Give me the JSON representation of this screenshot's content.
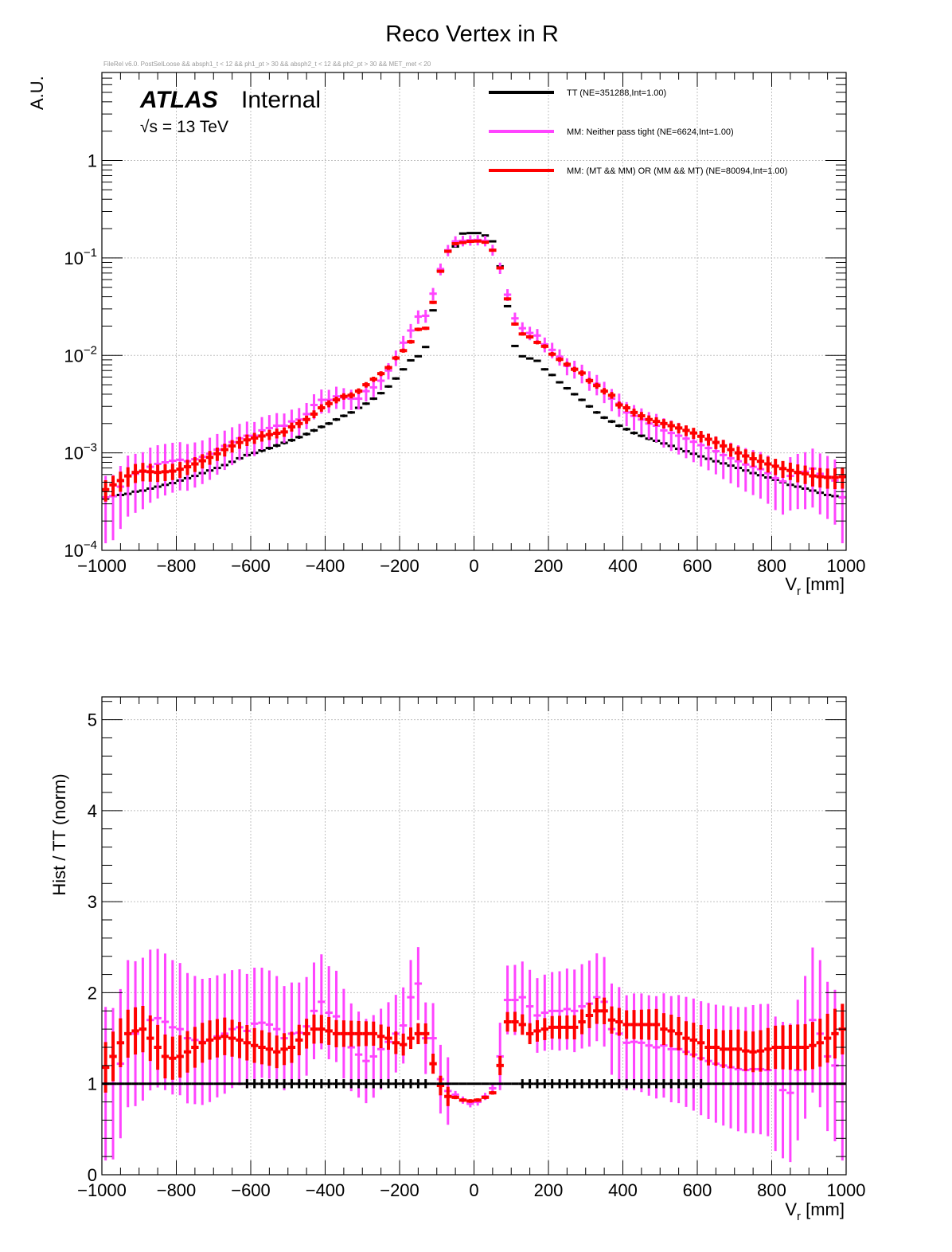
{
  "title": "Reco Vertex in R",
  "cut_string": "FileRel v6.0. PostSelLoose && absph1_t < 12 && ph1_pt > 30 && absph2_t < 12 && ph2_pt > 30 && MET_met < 20",
  "atlas_label": "ATLAS",
  "atlas_status": "Internal",
  "energy_label": "√s = 13 TeV",
  "colors": {
    "TT": "#000000",
    "MM_neither": "#ff44ff",
    "MM_mixed": "#ff0000",
    "grid": "#bbbbbb"
  },
  "chart_data": [
    {
      "type": "scatter",
      "panel": "top",
      "xlabel": "V",
      "xlabel_sub": "r",
      "xlabel_unit": " [mm]",
      "ylabel": "A.U.",
      "xlim": [
        -1000,
        1000
      ],
      "ylim": [
        0.0001,
        8
      ],
      "yscale": "log",
      "grid": true,
      "legend_position": "top-right",
      "x_ticks": [
        "−1000",
        "−800",
        "−600",
        "−400",
        "−200",
        "0",
        "200",
        "400",
        "600",
        "800",
        "1000"
      ],
      "y_ticks": [
        {
          "base": "10",
          "exp": "−4",
          "value": 0.0001
        },
        {
          "base": "10",
          "exp": "−3",
          "value": 0.001
        },
        {
          "base": "10",
          "exp": "−2",
          "value": 0.01
        },
        {
          "base": "10",
          "exp": "−1",
          "value": 0.1
        },
        {
          "base": "1",
          "exp": "",
          "value": 1
        }
      ],
      "x": [
        -990,
        -970,
        -950,
        -930,
        -910,
        -890,
        -870,
        -850,
        -830,
        -810,
        -790,
        -770,
        -750,
        -730,
        -710,
        -690,
        -670,
        -650,
        -630,
        -610,
        -590,
        -570,
        -550,
        -530,
        -510,
        -490,
        -470,
        -450,
        -430,
        -410,
        -390,
        -370,
        -350,
        -330,
        -310,
        -290,
        -270,
        -250,
        -230,
        -210,
        -190,
        -170,
        -150,
        -130,
        -110,
        -90,
        -70,
        -50,
        -30,
        -10,
        10,
        30,
        50,
        70,
        90,
        110,
        130,
        150,
        170,
        190,
        210,
        230,
        250,
        270,
        290,
        310,
        330,
        350,
        370,
        390,
        410,
        430,
        450,
        470,
        490,
        510,
        530,
        550,
        570,
        590,
        610,
        630,
        650,
        670,
        690,
        710,
        730,
        750,
        770,
        790,
        810,
        830,
        850,
        870,
        890,
        910,
        930,
        950,
        970,
        990
      ],
      "series": [
        {
          "name": "TT (NE=351288,Int=1.00)",
          "values": [
            0.00034,
            0.00036,
            0.00037,
            0.00038,
            0.0004,
            0.00041,
            0.00043,
            0.00045,
            0.00047,
            0.00049,
            0.00052,
            0.00055,
            0.00058,
            0.00062,
            0.00066,
            0.0007,
            0.00075,
            0.00081,
            0.00088,
            0.00095,
            0.001,
            0.00106,
            0.00112,
            0.00119,
            0.00127,
            0.00135,
            0.00145,
            0.00156,
            0.0017,
            0.00185,
            0.002,
            0.0022,
            0.0024,
            0.0026,
            0.0029,
            0.0032,
            0.0036,
            0.0041,
            0.0048,
            0.0058,
            0.0072,
            0.0089,
            0.0098,
            0.0122,
            0.029,
            0.074,
            0.119,
            0.131,
            0.178,
            0.18,
            0.18,
            0.17,
            0.148,
            0.082,
            0.032,
            0.0125,
            0.0098,
            0.0093,
            0.0088,
            0.0072,
            0.0063,
            0.0053,
            0.0046,
            0.004,
            0.0035,
            0.003,
            0.0026,
            0.0023,
            0.0021,
            0.0019,
            0.00175,
            0.0016,
            0.0015,
            0.0014,
            0.00133,
            0.00125,
            0.00118,
            0.0011,
            0.00104,
            0.00098,
            0.00092,
            0.00087,
            0.00082,
            0.00078,
            0.00074,
            0.0007,
            0.00066,
            0.00062,
            0.00059,
            0.00056,
            0.00053,
            0.0005,
            0.00047,
            0.00045,
            0.00043,
            0.00041,
            0.00039,
            0.00037,
            0.00036,
            0.00035
          ]
        },
        {
          "name": "MM: Neither pass tight (NE=6624,Int=1.00)",
          "values": [
            0.00035,
            0.00036,
            0.00045,
            0.00058,
            0.00061,
            0.00064,
            0.00072,
            0.00077,
            0.0008,
            0.00083,
            0.00085,
            0.00082,
            0.00086,
            0.00091,
            0.00098,
            0.00108,
            0.00118,
            0.00129,
            0.00141,
            0.0015,
            0.0015,
            0.0017,
            0.0018,
            0.0019,
            0.0019,
            0.0021,
            0.0022,
            0.0025,
            0.0031,
            0.0035,
            0.0035,
            0.0038,
            0.0037,
            0.0036,
            0.0036,
            0.0043,
            0.0047,
            0.0055,
            0.007,
            0.0095,
            0.0135,
            0.018,
            0.025,
            0.0255,
            0.043,
            0.077,
            0.12,
            0.148,
            0.15,
            0.152,
            0.153,
            0.15,
            0.121,
            0.079,
            0.042,
            0.024,
            0.019,
            0.017,
            0.016,
            0.013,
            0.0114,
            0.0097,
            0.0078,
            0.0073,
            0.0066,
            0.0056,
            0.0051,
            0.0043,
            0.0036,
            0.0032,
            0.0026,
            0.0024,
            0.0022,
            0.002,
            0.0019,
            0.0017,
            0.0016,
            0.0015,
            0.0014,
            0.0013,
            0.0012,
            0.00112,
            0.00104,
            0.00095,
            0.00088,
            0.00082,
            0.00076,
            0.00072,
            0.00068,
            0.00062,
            0.00055,
            0.00051,
            0.00058,
            0.00062,
            0.00064,
            0.00069,
            0.00061,
            0.00057,
            0.00052,
            0.00035
          ]
        },
        {
          "name": "MM: (MT && MM) OR (MM && MT) (NE=80094,Int=1.00)",
          "values": [
            0.00042,
            0.00047,
            0.00052,
            0.00058,
            0.00063,
            0.00065,
            0.00064,
            0.00063,
            0.00064,
            0.00065,
            0.00068,
            0.00072,
            0.00077,
            0.00083,
            0.0009,
            0.00098,
            0.00108,
            0.00118,
            0.00128,
            0.00136,
            0.00142,
            0.00149,
            0.00154,
            0.00159,
            0.00164,
            0.00185,
            0.002,
            0.0022,
            0.0025,
            0.0029,
            0.0032,
            0.0035,
            0.0038,
            0.0039,
            0.0043,
            0.005,
            0.0057,
            0.0065,
            0.0075,
            0.0094,
            0.0112,
            0.0138,
            0.0185,
            0.019,
            0.035,
            0.073,
            0.117,
            0.14,
            0.144,
            0.148,
            0.149,
            0.145,
            0.12,
            0.079,
            0.038,
            0.021,
            0.0166,
            0.0155,
            0.0136,
            0.0124,
            0.0103,
            0.0091,
            0.0081,
            0.0072,
            0.0066,
            0.0055,
            0.0049,
            0.0043,
            0.0039,
            0.0031,
            0.0029,
            0.0026,
            0.0024,
            0.0022,
            0.0021,
            0.002,
            0.0019,
            0.0018,
            0.0017,
            0.0016,
            0.00148,
            0.00138,
            0.00128,
            0.00118,
            0.00108,
            0.001,
            0.00093,
            0.00087,
            0.00082,
            0.00077,
            0.00073,
            0.00069,
            0.00066,
            0.00063,
            0.00061,
            0.00058,
            0.00057,
            0.00056,
            0.00056,
            0.00057
          ]
        }
      ]
    },
    {
      "type": "scatter",
      "panel": "bottom",
      "xlabel": "V",
      "xlabel_sub": "r",
      "xlabel_unit": " [mm]",
      "ylabel": "Hist / TT (norm)",
      "xlim": [
        -1000,
        1000
      ],
      "ylim": [
        0,
        5.25
      ],
      "grid": true,
      "x_ticks": [
        "−1000",
        "−800",
        "−600",
        "−400",
        "−200",
        "0",
        "200",
        "400",
        "600",
        "800",
        "1000"
      ],
      "y_ticks": [
        "0",
        "1",
        "2",
        "3",
        "4",
        "5"
      ],
      "x": [
        -990,
        -970,
        -950,
        -930,
        -910,
        -890,
        -870,
        -850,
        -830,
        -810,
        -790,
        -770,
        -750,
        -730,
        -710,
        -690,
        -670,
        -650,
        -630,
        -610,
        -590,
        -570,
        -550,
        -530,
        -510,
        -490,
        -470,
        -450,
        -430,
        -410,
        -390,
        -370,
        -350,
        -330,
        -310,
        -290,
        -270,
        -250,
        -230,
        -210,
        -190,
        -170,
        -150,
        -130,
        -110,
        -90,
        -70,
        -50,
        -30,
        -10,
        10,
        30,
        50,
        70,
        90,
        110,
        130,
        150,
        170,
        190,
        210,
        230,
        250,
        270,
        290,
        310,
        330,
        350,
        370,
        390,
        410,
        430,
        450,
        470,
        490,
        510,
        530,
        550,
        570,
        590,
        610,
        630,
        650,
        670,
        690,
        710,
        730,
        750,
        770,
        790,
        810,
        830,
        850,
        870,
        890,
        910,
        930,
        950,
        970,
        990
      ],
      "series": [
        {
          "name": "TT (NE=351288,Int=1.00)",
          "values": [
            1,
            1,
            1,
            1,
            1,
            1,
            1,
            1,
            1,
            1,
            1,
            1,
            1,
            1,
            1,
            1,
            1,
            1,
            1,
            1,
            1,
            1,
            1,
            1,
            1,
            1,
            1,
            1,
            1,
            1,
            1,
            1,
            1,
            1,
            1,
            1,
            1,
            1,
            1,
            1,
            1,
            1,
            1,
            1,
            1,
            1,
            1,
            1,
            1,
            1,
            1,
            1,
            1,
            1,
            1,
            1,
            1,
            1,
            1,
            1,
            1,
            1,
            1,
            1,
            1,
            1,
            1,
            1,
            1,
            1,
            1,
            1,
            1,
            1,
            1,
            1,
            1,
            1,
            1,
            1,
            1,
            1,
            1,
            1,
            1,
            1,
            1,
            1,
            1,
            1,
            1,
            1,
            1,
            1,
            1,
            1,
            1,
            1,
            1,
            1
          ]
        },
        {
          "name": "MM: Neither pass tight (NE=6624,Int=1.00)",
          "values": [
            1.0,
            1.0,
            1.22,
            1.55,
            1.55,
            1.6,
            1.7,
            1.72,
            1.68,
            1.62,
            1.6,
            1.5,
            1.48,
            1.46,
            1.48,
            1.52,
            1.55,
            1.6,
            1.62,
            1.58,
            1.66,
            1.67,
            1.65,
            1.6,
            1.5,
            1.55,
            1.56,
            1.63,
            1.8,
            1.9,
            1.78,
            1.74,
            1.55,
            1.4,
            1.32,
            1.25,
            1.3,
            1.38,
            1.46,
            1.55,
            1.64,
            1.95,
            2.1,
            1.5,
            1.5,
            1.05,
            0.92,
            0.88,
            0.82,
            0.78,
            0.8,
            0.86,
            0.95,
            1.3,
            1.92,
            1.92,
            1.95,
            1.85,
            1.75,
            1.78,
            1.8,
            1.8,
            1.82,
            1.8,
            1.85,
            1.88,
            1.95,
            1.9,
            1.6,
            1.55,
            1.45,
            1.46,
            1.45,
            1.42,
            1.4,
            1.42,
            1.38,
            1.38,
            1.35,
            1.32,
            1.28,
            1.25,
            1.22,
            1.2,
            1.18,
            1.16,
            1.15,
            1.16,
            1.16,
            1.15,
            1.0,
            0.93,
            0.9,
            1.15,
            1.4,
            1.7,
            1.55,
            1.3,
            1.2,
            1.0
          ]
        },
        {
          "name": "MM: (MT && MM) OR (MM && MT) (NE=80094,Int=1.00)",
          "values": [
            1.18,
            1.3,
            1.45,
            1.55,
            1.58,
            1.6,
            1.5,
            1.4,
            1.3,
            1.28,
            1.3,
            1.35,
            1.4,
            1.45,
            1.48,
            1.5,
            1.52,
            1.5,
            1.48,
            1.45,
            1.42,
            1.4,
            1.38,
            1.35,
            1.38,
            1.4,
            1.48,
            1.55,
            1.6,
            1.6,
            1.58,
            1.55,
            1.55,
            1.55,
            1.55,
            1.55,
            1.55,
            1.52,
            1.5,
            1.45,
            1.43,
            1.5,
            1.55,
            1.55,
            1.22,
            0.98,
            0.86,
            0.85,
            0.82,
            0.81,
            0.82,
            0.85,
            0.9,
            1.2,
            1.68,
            1.68,
            1.65,
            1.55,
            1.58,
            1.6,
            1.62,
            1.62,
            1.62,
            1.62,
            1.68,
            1.75,
            1.8,
            1.8,
            1.7,
            1.68,
            1.65,
            1.65,
            1.65,
            1.65,
            1.65,
            1.6,
            1.58,
            1.55,
            1.5,
            1.48,
            1.45,
            1.4,
            1.4,
            1.38,
            1.38,
            1.38,
            1.36,
            1.35,
            1.36,
            1.38,
            1.4,
            1.4,
            1.4,
            1.4,
            1.4,
            1.42,
            1.45,
            1.5,
            1.55,
            1.6
          ]
        }
      ]
    }
  ]
}
